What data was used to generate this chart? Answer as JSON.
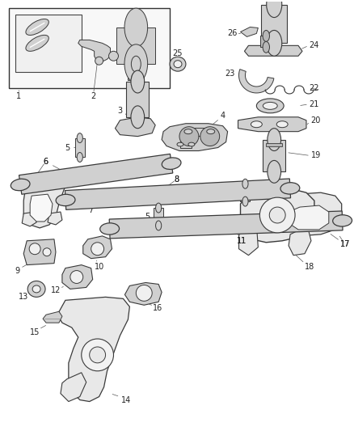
{
  "bg_color": "#ffffff",
  "line_color": "#3a3a3a",
  "fill_light": "#e8e8e8",
  "fill_mid": "#d0d0d0",
  "fill_dark": "#b8b8b8",
  "label_color": "#222222",
  "fig_width": 4.38,
  "fig_height": 5.33,
  "dpi": 100,
  "lw": 0.8,
  "fontsize": 7.0
}
